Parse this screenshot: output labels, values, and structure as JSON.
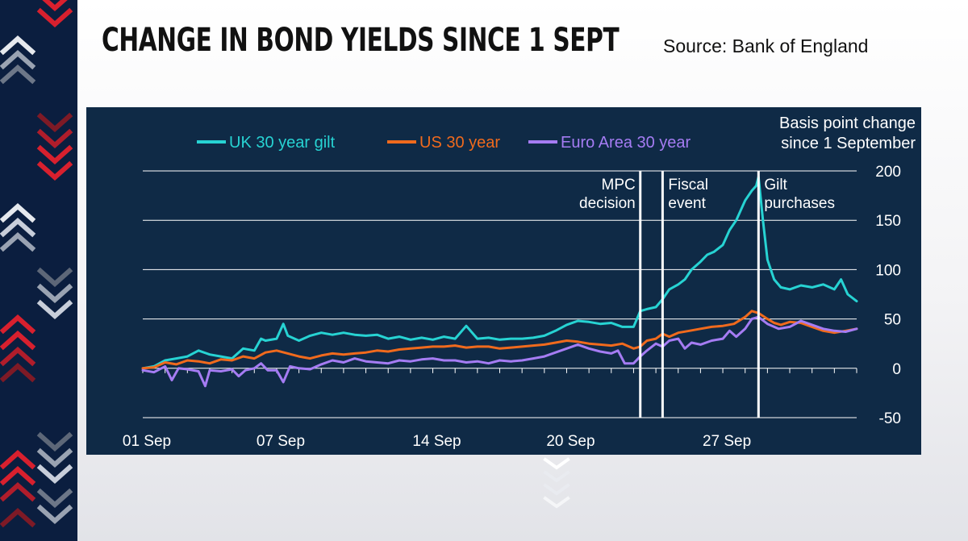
{
  "header": {
    "title": "CHANGE IN BOND YIELDS SINCE 1 SEPT",
    "source": "Source: Bank of England"
  },
  "colors": {
    "panel_background": "#0f2a46",
    "uk_gilt": "#27d3d3",
    "us": "#f06a1d",
    "euro": "#a57cf3",
    "strip": "#0b1e3f",
    "chevron_red": "#d8202e",
    "chevron_grey": "#8a96a8"
  },
  "chart_data": {
    "type": "line",
    "y_axis_title": [
      "Basis point change",
      "since 1 September"
    ],
    "ylim": [
      -50,
      200
    ],
    "yticks": [
      "200",
      "150",
      "100",
      "50",
      "0",
      "-50"
    ],
    "xlim": [
      0,
      32
    ],
    "xticks": [
      {
        "label": "01 Sep",
        "x": 0
      },
      {
        "label": "07 Sep",
        "x": 6
      },
      {
        "label": "14 Sep",
        "x": 13
      },
      {
        "label": "20 Sep",
        "x": 19
      },
      {
        "label": "27 Sep",
        "x": 26
      }
    ],
    "grid": true,
    "legend_position": "top",
    "events": [
      {
        "label": [
          "MPC",
          "decision"
        ],
        "x": 22.3
      },
      {
        "label": [
          "Fiscal",
          "event"
        ],
        "x": 23.3
      },
      {
        "label": [
          "Gilt",
          "purchases"
        ],
        "x": 27.6
      }
    ],
    "series": [
      {
        "name": "UK 30 year gilt",
        "color": "#27d3d3",
        "points": [
          [
            0,
            0
          ],
          [
            0.5,
            2
          ],
          [
            1,
            8
          ],
          [
            1.5,
            10
          ],
          [
            2,
            12
          ],
          [
            2.5,
            18
          ],
          [
            3,
            14
          ],
          [
            3.5,
            12
          ],
          [
            4,
            10
          ],
          [
            4.5,
            20
          ],
          [
            5,
            18
          ],
          [
            5.3,
            30
          ],
          [
            5.5,
            28
          ],
          [
            6,
            30
          ],
          [
            6.3,
            45
          ],
          [
            6.5,
            33
          ],
          [
            7,
            28
          ],
          [
            7.5,
            33
          ],
          [
            8,
            36
          ],
          [
            8.5,
            34
          ],
          [
            9,
            36
          ],
          [
            9.5,
            34
          ],
          [
            10,
            33
          ],
          [
            10.5,
            34
          ],
          [
            11,
            30
          ],
          [
            11.5,
            32
          ],
          [
            12,
            29
          ],
          [
            12.5,
            31
          ],
          [
            13,
            29
          ],
          [
            13.5,
            32
          ],
          [
            14,
            30
          ],
          [
            14.5,
            43
          ],
          [
            15,
            30
          ],
          [
            15.5,
            31
          ],
          [
            16,
            29
          ],
          [
            16.5,
            30
          ],
          [
            17,
            30
          ],
          [
            17.5,
            31
          ],
          [
            18,
            33
          ],
          [
            18.5,
            38
          ],
          [
            19,
            44
          ],
          [
            19.5,
            48
          ],
          [
            20,
            47
          ],
          [
            20.5,
            45
          ],
          [
            21,
            46
          ],
          [
            21.5,
            42
          ],
          [
            22,
            42
          ],
          [
            22.3,
            58
          ],
          [
            22.6,
            60
          ],
          [
            23,
            62
          ],
          [
            23.3,
            70
          ],
          [
            23.6,
            80
          ],
          [
            24,
            85
          ],
          [
            24.3,
            90
          ],
          [
            24.6,
            100
          ],
          [
            25,
            108
          ],
          [
            25.3,
            115
          ],
          [
            25.6,
            118
          ],
          [
            26,
            125
          ],
          [
            26.3,
            140
          ],
          [
            26.6,
            150
          ],
          [
            27,
            170
          ],
          [
            27.3,
            180
          ],
          [
            27.5,
            185
          ],
          [
            27.6,
            194
          ],
          [
            27.8,
            150
          ],
          [
            28,
            110
          ],
          [
            28.3,
            90
          ],
          [
            28.6,
            82
          ],
          [
            29,
            80
          ],
          [
            29.5,
            84
          ],
          [
            30,
            82
          ],
          [
            30.5,
            85
          ],
          [
            31,
            80
          ],
          [
            31.3,
            90
          ],
          [
            31.6,
            75
          ],
          [
            32,
            68
          ]
        ]
      },
      {
        "name": "US 30 year",
        "color": "#f06a1d",
        "points": [
          [
            0,
            0
          ],
          [
            0.5,
            1
          ],
          [
            1,
            6
          ],
          [
            1.5,
            4
          ],
          [
            2,
            8
          ],
          [
            2.5,
            7
          ],
          [
            3,
            5
          ],
          [
            3.5,
            9
          ],
          [
            4,
            8
          ],
          [
            4.5,
            12
          ],
          [
            5,
            10
          ],
          [
            5.5,
            16
          ],
          [
            6,
            18
          ],
          [
            6.5,
            15
          ],
          [
            7,
            12
          ],
          [
            7.5,
            10
          ],
          [
            8,
            13
          ],
          [
            8.5,
            15
          ],
          [
            9,
            14
          ],
          [
            9.5,
            15
          ],
          [
            10,
            16
          ],
          [
            10.5,
            18
          ],
          [
            11,
            17
          ],
          [
            11.5,
            19
          ],
          [
            12,
            20
          ],
          [
            12.5,
            21
          ],
          [
            13,
            22
          ],
          [
            13.5,
            22
          ],
          [
            14,
            23
          ],
          [
            14.5,
            21
          ],
          [
            15,
            22
          ],
          [
            15.5,
            22
          ],
          [
            16,
            20
          ],
          [
            16.5,
            21
          ],
          [
            17,
            22
          ],
          [
            17.5,
            23
          ],
          [
            18,
            24
          ],
          [
            18.5,
            26
          ],
          [
            19,
            28
          ],
          [
            19.5,
            27
          ],
          [
            20,
            25
          ],
          [
            20.5,
            24
          ],
          [
            21,
            23
          ],
          [
            21.5,
            25
          ],
          [
            22,
            20
          ],
          [
            22.3,
            22
          ],
          [
            22.6,
            28
          ],
          [
            23,
            30
          ],
          [
            23.3,
            35
          ],
          [
            23.6,
            32
          ],
          [
            24,
            36
          ],
          [
            24.5,
            38
          ],
          [
            25,
            40
          ],
          [
            25.5,
            42
          ],
          [
            26,
            43
          ],
          [
            26.5,
            45
          ],
          [
            27,
            52
          ],
          [
            27.3,
            58
          ],
          [
            27.6,
            56
          ],
          [
            28,
            50
          ],
          [
            28.3,
            46
          ],
          [
            28.6,
            44
          ],
          [
            29,
            47
          ],
          [
            29.5,
            46
          ],
          [
            30,
            42
          ],
          [
            30.5,
            38
          ],
          [
            31,
            36
          ],
          [
            31.5,
            38
          ],
          [
            32,
            40
          ]
        ]
      },
      {
        "name": "Euro Area 30 year",
        "color": "#a57cf3",
        "points": [
          [
            0,
            -2
          ],
          [
            0.5,
            -4
          ],
          [
            1,
            2
          ],
          [
            1.3,
            -12
          ],
          [
            1.6,
            0
          ],
          [
            2,
            -1
          ],
          [
            2.5,
            -3
          ],
          [
            2.8,
            -18
          ],
          [
            3,
            -2
          ],
          [
            3.5,
            -3
          ],
          [
            4,
            -1
          ],
          [
            4.3,
            -8
          ],
          [
            4.6,
            -2
          ],
          [
            5,
            0
          ],
          [
            5.3,
            5
          ],
          [
            5.6,
            -2
          ],
          [
            6,
            -2
          ],
          [
            6.3,
            -14
          ],
          [
            6.6,
            2
          ],
          [
            7,
            0
          ],
          [
            7.5,
            -1
          ],
          [
            8,
            4
          ],
          [
            8.5,
            8
          ],
          [
            9,
            6
          ],
          [
            9.5,
            10
          ],
          [
            10,
            7
          ],
          [
            10.5,
            6
          ],
          [
            11,
            5
          ],
          [
            11.5,
            8
          ],
          [
            12,
            7
          ],
          [
            12.5,
            9
          ],
          [
            13,
            10
          ],
          [
            13.5,
            8
          ],
          [
            14,
            8
          ],
          [
            14.5,
            6
          ],
          [
            15,
            7
          ],
          [
            15.5,
            5
          ],
          [
            16,
            8
          ],
          [
            16.5,
            7
          ],
          [
            17,
            8
          ],
          [
            17.5,
            10
          ],
          [
            18,
            12
          ],
          [
            18.5,
            16
          ],
          [
            19,
            20
          ],
          [
            19.5,
            24
          ],
          [
            20,
            20
          ],
          [
            20.5,
            17
          ],
          [
            21,
            15
          ],
          [
            21.3,
            18
          ],
          [
            21.6,
            5
          ],
          [
            22,
            5
          ],
          [
            22.3,
            12
          ],
          [
            22.6,
            18
          ],
          [
            23,
            25
          ],
          [
            23.3,
            22
          ],
          [
            23.6,
            28
          ],
          [
            24,
            30
          ],
          [
            24.3,
            20
          ],
          [
            24.6,
            26
          ],
          [
            25,
            24
          ],
          [
            25.5,
            28
          ],
          [
            26,
            30
          ],
          [
            26.3,
            38
          ],
          [
            26.6,
            32
          ],
          [
            27,
            40
          ],
          [
            27.3,
            50
          ],
          [
            27.6,
            52
          ],
          [
            28,
            45
          ],
          [
            28.5,
            40
          ],
          [
            29,
            42
          ],
          [
            29.5,
            48
          ],
          [
            30,
            44
          ],
          [
            30.5,
            40
          ],
          [
            31,
            38
          ],
          [
            31.5,
            37
          ],
          [
            32,
            40
          ]
        ]
      }
    ]
  }
}
